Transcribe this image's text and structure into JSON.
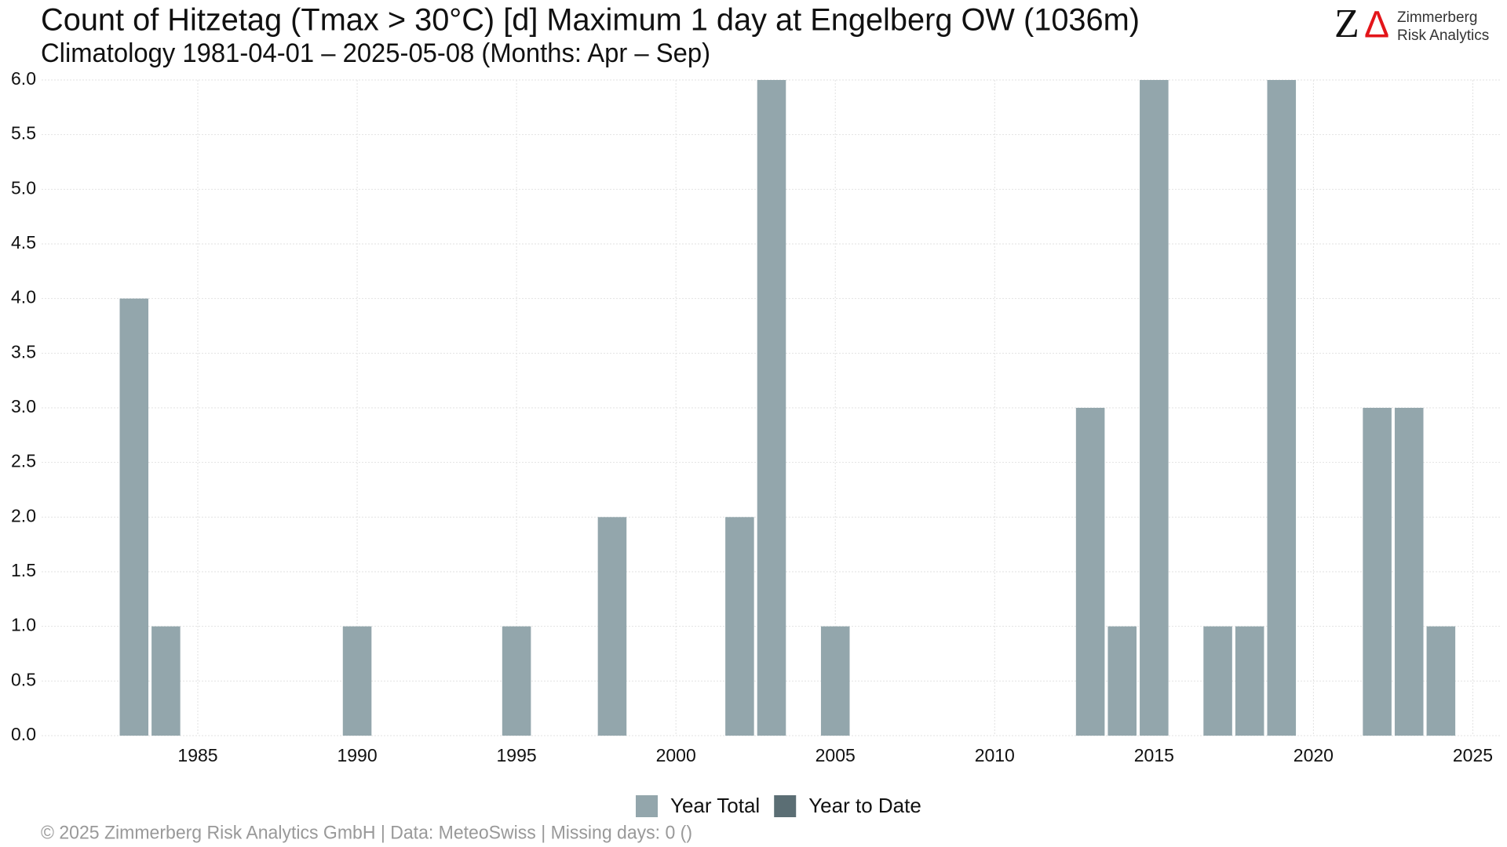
{
  "chart_data": {
    "type": "bar",
    "title": "Count of Hitzetag (Tmax > 30°C) [d] Maximum 1 day at Engelberg  OW (1036m)",
    "subtitle": "Climatology 1981-04-01 – 2025-05-08 (Months: Apr – Sep)",
    "x": [
      1983,
      1984,
      1990,
      1995,
      1998,
      2002,
      2003,
      2005,
      2013,
      2014,
      2015,
      2017,
      2018,
      2019,
      2022,
      2023,
      2024
    ],
    "series": [
      {
        "name": "Year Total",
        "color": "#93a6ac",
        "values": [
          4,
          1,
          1,
          1,
          2,
          2,
          6,
          1,
          3,
          1,
          6,
          1,
          1,
          6,
          3,
          3,
          1
        ]
      },
      {
        "name": "Year to Date",
        "color": "#5b6e74",
        "values": [
          null,
          null,
          null,
          null,
          null,
          null,
          null,
          null,
          null,
          null,
          null,
          null,
          null,
          null,
          null,
          null,
          null
        ]
      }
    ],
    "xlim": [
      1980.1,
      2025.9
    ],
    "xticks": [
      1985,
      1990,
      1995,
      2000,
      2005,
      2010,
      2015,
      2020,
      2025
    ],
    "ylim": [
      0,
      6
    ],
    "yticks": [
      {
        "value": 0,
        "label": "0.0"
      },
      {
        "value": 0.5,
        "label": "0.5"
      },
      {
        "value": 1,
        "label": "1.0"
      },
      {
        "value": 1.5,
        "label": "1.5"
      },
      {
        "value": 2,
        "label": "2.0"
      },
      {
        "value": 2.5,
        "label": "2.5"
      },
      {
        "value": 3,
        "label": "3.0"
      },
      {
        "value": 3.5,
        "label": "3.5"
      },
      {
        "value": 4,
        "label": "4.0"
      },
      {
        "value": 4.5,
        "label": "4.5"
      },
      {
        "value": 5,
        "label": "5.0"
      },
      {
        "value": 5.5,
        "label": "5.5"
      },
      {
        "value": 6,
        "label": "6.0"
      }
    ],
    "grid": true,
    "legend": "bottom",
    "footer": "©  2025 Zimmerberg Risk Analytics GmbH | Data: MeteoSwiss | Missing days: 0 ()",
    "logo": {
      "mark_z": "Z",
      "mark_delta": "Δ",
      "line1": "Zimmerberg",
      "line2": "Risk Analytics"
    }
  }
}
